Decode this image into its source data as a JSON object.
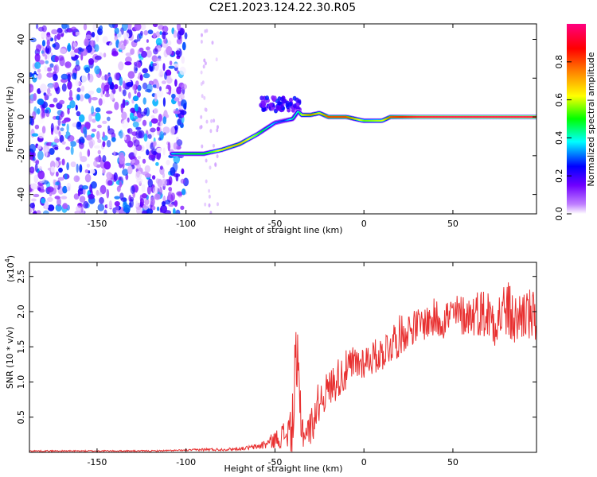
{
  "title": "C2E1.2023.124.22.30.R05",
  "chart_data": [
    {
      "type": "heatmap",
      "xlabel": "Height of straight line (km)",
      "ylabel": "Frequency (Hz)",
      "xlim": [
        -188,
        97
      ],
      "ylim": [
        -50,
        48
      ],
      "xticks": [
        -150,
        -100,
        -50,
        0,
        50
      ],
      "yticks": [
        -40,
        -20,
        0,
        20,
        40
      ],
      "grid": false,
      "colorbar": {
        "label": "Normalized spectral amplitude",
        "range": [
          0,
          1
        ],
        "ticks": [
          "0.0",
          "0.2",
          "0.4",
          "0.6",
          "0.8"
        ],
        "colors": [
          "#ffffff",
          "#c080ff",
          "#7000ff",
          "#0000ff",
          "#00ffff",
          "#00ff00",
          "#ffff00",
          "#ff8000",
          "#ff0000",
          "#ff0080"
        ]
      },
      "ridge": {
        "x": [
          -108,
          -100,
          -90,
          -85,
          -80,
          -70,
          -60,
          -55,
          -50,
          -45,
          -40,
          -37,
          -35,
          -30,
          -25,
          -20,
          -10,
          0,
          10,
          15,
          30,
          50,
          70,
          90,
          97
        ],
        "y": [
          -19,
          -19,
          -19,
          -18,
          -17,
          -14,
          -9,
          -6,
          -3,
          -2,
          -1,
          3,
          1,
          1,
          2,
          0,
          0,
          -2,
          -2,
          0,
          0,
          0,
          0,
          0,
          0
        ],
        "amplitude": [
          0.45,
          0.55,
          0.55,
          0.6,
          0.7,
          0.75,
          0.6,
          0.5,
          0.4,
          0.35,
          0.5,
          0.45,
          0.7,
          0.8,
          0.7,
          0.85,
          0.85,
          0.6,
          0.65,
          0.85,
          0.95,
          0.97,
          0.97,
          0.97,
          0.95
        ]
      },
      "burst": {
        "x": [
          -58,
          -36
        ],
        "y": [
          3,
          10
        ],
        "amplitude": 0.3
      },
      "noise_region": {
        "x": [
          -188,
          -100
        ],
        "amplitude": 0.2
      }
    },
    {
      "type": "line",
      "xlabel": "Height of straight line (km)",
      "ylabel": "SNR (10 * v/v)",
      "y_multiplier": "(x10",
      "y_multiplier_exp": "4",
      "y_multiplier_close": ")",
      "xlim": [
        -188,
        97
      ],
      "ylim": [
        0,
        2.7
      ],
      "xticks": [
        -150,
        -100,
        -50,
        0,
        50
      ],
      "yticks": [
        0.5,
        1.0,
        1.5,
        2.0,
        2.5
      ],
      "grid": false,
      "color": "#e83030",
      "x": [
        -188,
        -150,
        -120,
        -100,
        -90,
        -80,
        -70,
        -60,
        -55,
        -50,
        -45,
        -42,
        -40,
        -38,
        -36,
        -34,
        -32,
        -30,
        -28,
        -25,
        -20,
        -15,
        -10,
        -5,
        0,
        5,
        10,
        15,
        20,
        25,
        30,
        35,
        40,
        45,
        50,
        55,
        60,
        65,
        70,
        75,
        80,
        85,
        90,
        95,
        97
      ],
      "y": [
        0.02,
        0.02,
        0.02,
        0.03,
        0.04,
        0.04,
        0.05,
        0.08,
        0.12,
        0.18,
        0.25,
        0.3,
        0.45,
        1.2,
        0.7,
        0.25,
        0.3,
        0.35,
        0.5,
        0.75,
        0.9,
        1.05,
        1.15,
        1.25,
        1.3,
        1.35,
        1.4,
        1.55,
        1.65,
        1.75,
        1.8,
        1.85,
        1.9,
        1.9,
        1.95,
        1.95,
        1.95,
        2.0,
        1.95,
        1.9,
        2.05,
        1.85,
        2.0,
        1.9,
        1.85
      ],
      "noise_amplitude": [
        0.01,
        0.01,
        0.01,
        0.01,
        0.02,
        0.02,
        0.02,
        0.04,
        0.08,
        0.12,
        0.2,
        0.3,
        0.6,
        0.7,
        0.6,
        0.2,
        0.2,
        0.25,
        0.3,
        0.3,
        0.25,
        0.3,
        0.3,
        0.3,
        0.25,
        0.25,
        0.25,
        0.3,
        0.3,
        0.25,
        0.25,
        0.25,
        0.3,
        0.3,
        0.3,
        0.3,
        0.3,
        0.35,
        0.4,
        0.4,
        0.45,
        0.4,
        0.4,
        0.4,
        0.35
      ]
    }
  ]
}
